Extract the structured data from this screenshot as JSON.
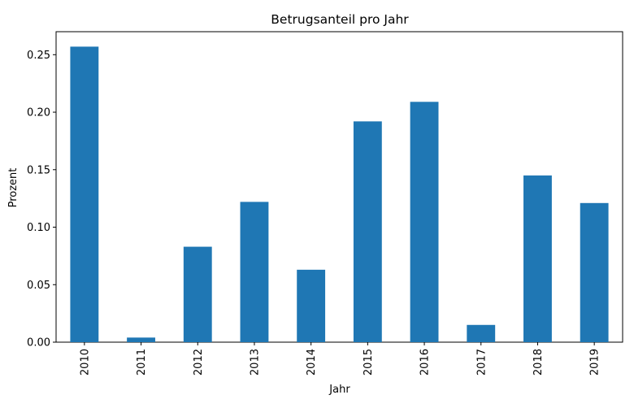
{
  "chart_data": {
    "type": "bar",
    "title": "Betrugsanteil pro Jahr",
    "xlabel": "Jahr",
    "ylabel": "Prozent",
    "categories": [
      "2010",
      "2011",
      "2012",
      "2013",
      "2014",
      "2015",
      "2016",
      "2017",
      "2018",
      "2019"
    ],
    "values": [
      0.257,
      0.004,
      0.083,
      0.122,
      0.063,
      0.192,
      0.209,
      0.015,
      0.145,
      0.121
    ],
    "ylim": [
      0,
      0.27
    ],
    "yticks": [
      "0.00",
      "0.05",
      "0.10",
      "0.15",
      "0.20",
      "0.25"
    ],
    "bar_color": "#1f77b4",
    "grid": false,
    "legend": "none"
  }
}
